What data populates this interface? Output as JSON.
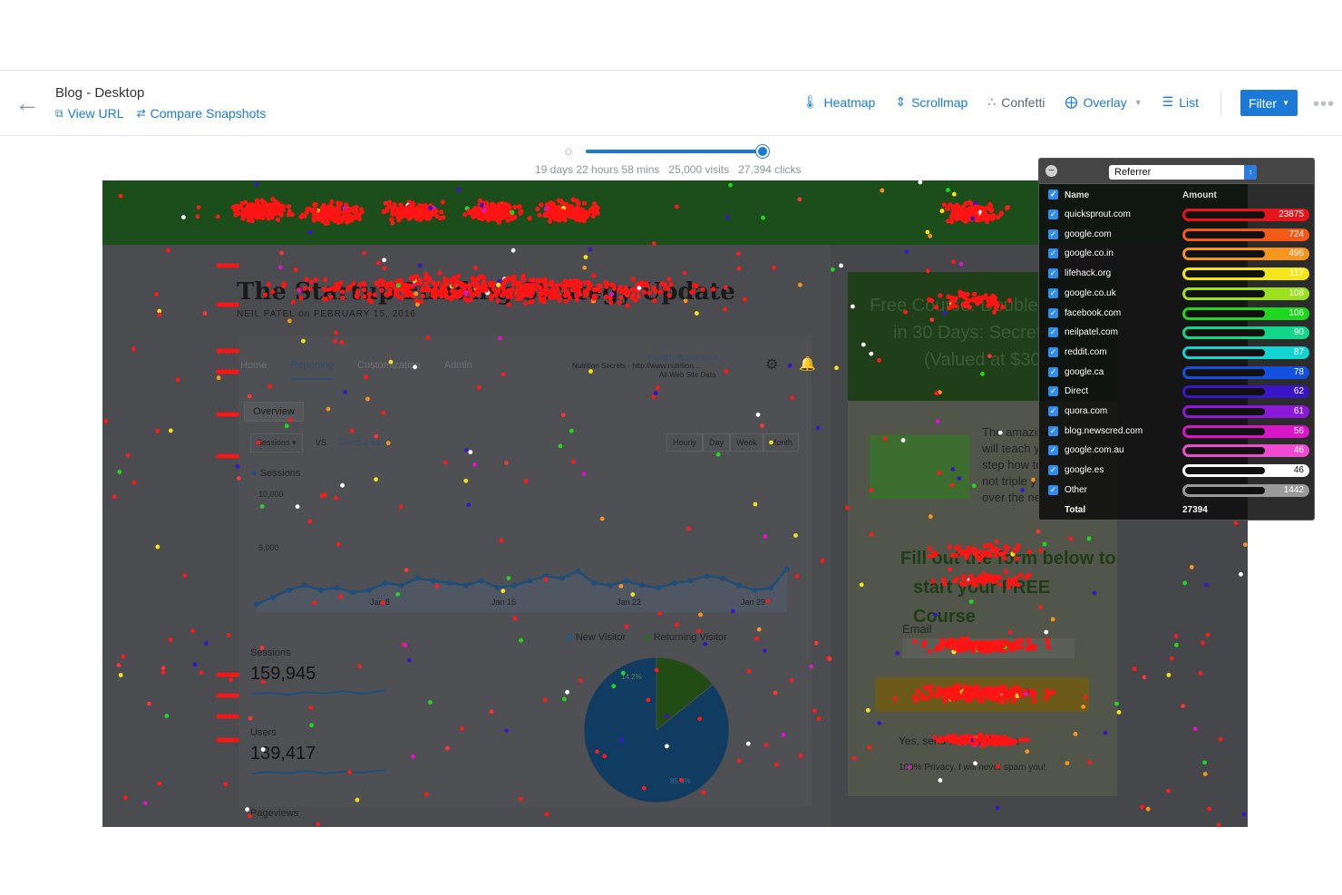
{
  "header": {
    "title": "Blog - Desktop",
    "view_url": "View URL",
    "compare": "Compare Snapshots",
    "nav": [
      {
        "label": "Heatmap",
        "icon": "thermometer-icon",
        "color": "#1a7ad6"
      },
      {
        "label": "Scrollmap",
        "icon": "scroll-icon",
        "color": "#1a7ad6"
      },
      {
        "label": "Confetti",
        "icon": "confetti-icon",
        "color": "#5b6670"
      },
      {
        "label": "Overlay",
        "icon": "plus-circle-icon",
        "color": "#1a7ad6"
      },
      {
        "label": "List",
        "icon": "list-icon",
        "color": "#1a7ad6"
      }
    ],
    "filter": "Filter"
  },
  "timeline": {
    "duration": "19 days 22 hours 58 mins",
    "visits": "25,000 visits",
    "clicks": "27,394 clicks",
    "progress": 1.0
  },
  "snapshot": {
    "post_title": "The Startup Funding Strategy Update",
    "post_meta": "NEIL PATEL on FEBRUARY 15, 2016",
    "ga_nav": [
      "Home",
      "Reporting",
      "Customization",
      "Admin"
    ],
    "ga_account": "neil@neilpatel.com",
    "ga_account_sub": "Nutrition Secrets - http://www.nutrition...",
    "ga_account_sub2": "All Web Site Data",
    "overview": "Overview",
    "metric_select": "Sessions",
    "vs": "VS.",
    "select_metric": "Select a metric",
    "ranges": [
      "Hourly",
      "Day",
      "Week",
      "Month"
    ],
    "legend_sessions": "Sessions",
    "y_top": "10,000",
    "y_mid": "5,000",
    "x_ticks": [
      "Jan 8",
      "Jan 15",
      "Jan 22",
      "Jan 29"
    ],
    "sessions_series": [
      5100,
      5400,
      5700,
      5900,
      5700,
      5800,
      5600,
      5700,
      6000,
      5900,
      6200,
      6100,
      6000,
      5900,
      6100,
      5800,
      5900,
      6100,
      6300,
      6200,
      6500,
      6000,
      5900,
      6100,
      5900,
      5800,
      6000,
      6100,
      6300,
      6200,
      5900,
      5700,
      5800,
      6600
    ],
    "pie_legend": [
      "New Visitor",
      "Returning Visitor"
    ],
    "pie_values": [
      85.8,
      14.2
    ],
    "pie_labels": [
      "14.2%",
      "85.8%"
    ],
    "metrics": [
      {
        "label": "Sessions",
        "value": "159,945"
      },
      {
        "label": "Users",
        "value": "139,417"
      },
      {
        "label": "Pageviews",
        "value": ""
      }
    ],
    "promo": [
      "Free Course: Double Your",
      "in 30 Days: Secret B",
      "(Valued at $300)"
    ],
    "promo_body": [
      "The amazing",
      "will teach y",
      "step how to",
      "not triple y",
      "over the ne"
    ],
    "form_title": [
      "Fill out the form below to",
      "start your FREE Course"
    ],
    "email_label": "Email",
    "optin": "Yes, send me the Course",
    "privacy": "100% Privacy. I will never spam you!"
  },
  "referrer_panel": {
    "dropdown": "Referrer",
    "col_name": "Name",
    "col_amount": "Amount",
    "rows": [
      {
        "name": "quicksprout.com",
        "amount": "23875",
        "color": "#e8141c"
      },
      {
        "name": "google.com",
        "amount": "724",
        "color": "#f25a16"
      },
      {
        "name": "google.co.in",
        "amount": "496",
        "color": "#f7941e"
      },
      {
        "name": "lifehack.org",
        "amount": "117",
        "color": "#f3e61a"
      },
      {
        "name": "google.co.uk",
        "amount": "108",
        "color": "#9be21c"
      },
      {
        "name": "facebook.com",
        "amount": "106",
        "color": "#1ed81e"
      },
      {
        "name": "neilpatel.com",
        "amount": "90",
        "color": "#14d68b"
      },
      {
        "name": "reddit.com",
        "amount": "87",
        "color": "#14d3d0"
      },
      {
        "name": "google.ca",
        "amount": "78",
        "color": "#1450e0"
      },
      {
        "name": "Direct",
        "amount": "62",
        "color": "#3a16c8"
      },
      {
        "name": "quora.com",
        "amount": "61",
        "color": "#8a1ad8"
      },
      {
        "name": "blog.newscred.com",
        "amount": "56",
        "color": "#d916c8"
      },
      {
        "name": "google.com.au",
        "amount": "46",
        "color": "#f04bd0"
      },
      {
        "name": "google.es",
        "amount": "46",
        "color": "#ffffff"
      },
      {
        "name": "Other",
        "amount": "1442",
        "color": "#9a9a9a"
      }
    ],
    "total_label": "Total",
    "total": "27394"
  }
}
